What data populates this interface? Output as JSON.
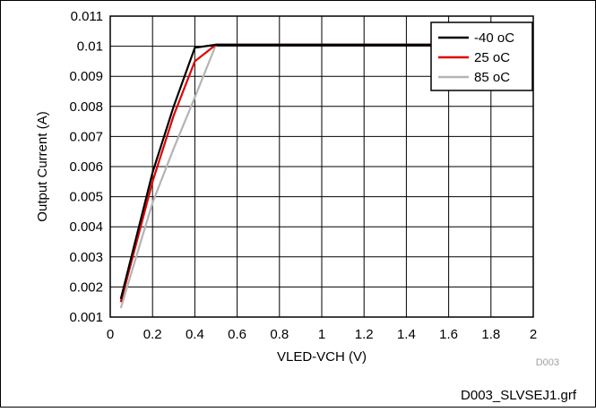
{
  "chart_data": {
    "type": "line",
    "xlabel": "VLED-VCH (V)",
    "ylabel": "Output Current (A)",
    "xlim": [
      0,
      2
    ],
    "ylim": [
      0.001,
      0.011
    ],
    "xticks": [
      "0",
      "0.2",
      "0.4",
      "0.6",
      "0.8",
      "1",
      "1.2",
      "1.4",
      "1.6",
      "1.8",
      "2"
    ],
    "yticks": [
      "0.001",
      "0.002",
      "0.003",
      "0.004",
      "0.005",
      "0.006",
      "0.007",
      "0.008",
      "0.009",
      "0.01",
      "0.011"
    ],
    "grid": true,
    "legend_position": "top-right",
    "series": [
      {
        "name": "-40 oC",
        "color": "#000000",
        "x": [
          0.05,
          0.2,
          0.3,
          0.4,
          0.5,
          2.0
        ],
        "y": [
          0.0016,
          0.0058,
          0.008,
          0.00995,
          0.01005,
          0.01005
        ]
      },
      {
        "name": "25 oC",
        "color": "#e00000",
        "x": [
          0.05,
          0.2,
          0.3,
          0.4,
          0.5,
          2.0
        ],
        "y": [
          0.0015,
          0.0055,
          0.0077,
          0.0095,
          0.01005,
          0.01005
        ]
      },
      {
        "name": "85 oC",
        "color": "#b4b4b4",
        "x": [
          0.05,
          0.2,
          0.3,
          0.4,
          0.5,
          2.0
        ],
        "y": [
          0.0013,
          0.0048,
          0.0066,
          0.0083,
          0.01005,
          0.01005
        ]
      }
    ],
    "watermark": "D003",
    "footer": "D003_SLVSEJ1.grf"
  }
}
